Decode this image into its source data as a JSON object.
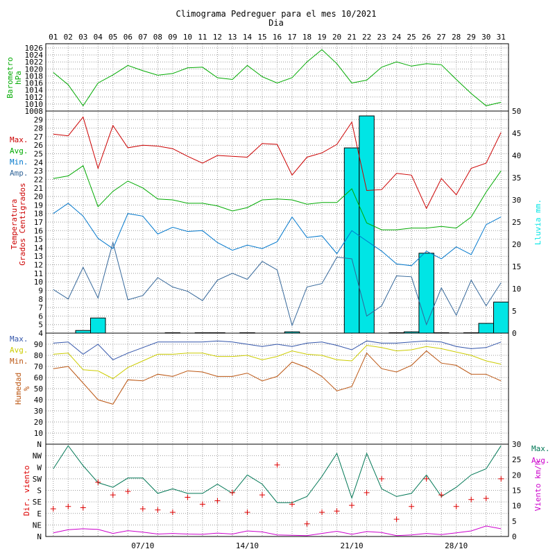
{
  "title": "Climograma Pedreguer para el mes 10/2021",
  "subtitle": "Dia",
  "days": [
    "01",
    "02",
    "03",
    "04",
    "05",
    "06",
    "07",
    "08",
    "09",
    "10",
    "11",
    "12",
    "13",
    "14",
    "15",
    "16",
    "17",
    "18",
    "19",
    "20",
    "21",
    "22",
    "23",
    "24",
    "25",
    "26",
    "27",
    "28",
    "29",
    "30",
    "31"
  ],
  "date_ticks": [
    {
      "day": 7,
      "label": "07/10"
    },
    {
      "day": 14,
      "label": "14/10"
    },
    {
      "day": 21,
      "label": "21/10"
    },
    {
      "day": 28,
      "label": "28/10"
    }
  ],
  "colors": {
    "pressure": "#00aa00",
    "tmax": "#cc0000",
    "tavg": "#00aa00",
    "tmin": "#0077cc",
    "tamp": "#336699",
    "rain": "#00e5e5",
    "hmax": "#3355aa",
    "havg": "#cccc00",
    "hmin": "#bb5511",
    "wdir": "#dd0000",
    "wmax": "#007755",
    "wavg": "#cc00cc",
    "grid": "#999999"
  },
  "chart_data": [
    {
      "type": "line",
      "panel": "pressure",
      "ylabel": [
        "Barometro",
        "hPa"
      ],
      "ylim": [
        1008,
        1026
      ],
      "yticks": [
        1008,
        1010,
        1012,
        1014,
        1016,
        1018,
        1020,
        1022,
        1024,
        1026
      ],
      "x": [
        1,
        2,
        3,
        4,
        5,
        6,
        7,
        8,
        9,
        10,
        11,
        12,
        13,
        14,
        15,
        16,
        17,
        18,
        19,
        20,
        21,
        22,
        23,
        24,
        25,
        26,
        27,
        28,
        29,
        30,
        31
      ],
      "series": [
        {
          "key": "pressure",
          "values": [
            1019,
            1015.5,
            1009.5,
            1016,
            1018.3,
            1021,
            1019.5,
            1018.2,
            1018.7,
            1020.3,
            1020.5,
            1017.5,
            1017,
            1021,
            1017.8,
            1016,
            1017.5,
            1022,
            1025.5,
            1021.5,
            1016,
            1016.8,
            1020.5,
            1022,
            1020.8,
            1021.5,
            1021.2,
            1017,
            1013,
            1009.5,
            1010.5
          ]
        }
      ]
    },
    {
      "type": "line+bar",
      "panel": "temperature_rain",
      "ylabel": [
        "Temperatura",
        "Grados Centigrados"
      ],
      "ylim": [
        4,
        30
      ],
      "yticks": [
        4,
        5,
        6,
        7,
        8,
        9,
        10,
        11,
        12,
        13,
        14,
        15,
        16,
        17,
        18,
        19,
        20,
        21,
        22,
        23,
        24,
        25,
        26,
        27,
        28,
        29
      ],
      "y2label": "Lluvia mm.",
      "y2lim": [
        0,
        50
      ],
      "y2ticks": [
        0,
        5,
        10,
        15,
        20,
        25,
        30,
        35,
        40,
        45,
        50
      ],
      "legend": [
        "Max.",
        "Avg.",
        "Min.",
        "Amp."
      ],
      "x": [
        1,
        2,
        3,
        4,
        5,
        6,
        7,
        8,
        9,
        10,
        11,
        12,
        13,
        14,
        15,
        16,
        17,
        18,
        19,
        20,
        21,
        22,
        23,
        24,
        25,
        26,
        27,
        28,
        29,
        30,
        31
      ],
      "series": [
        {
          "name": "Max.",
          "key": "tmax",
          "values": [
            27.3,
            27.1,
            29.3,
            23.3,
            28.3,
            25.7,
            26,
            25.9,
            25.6,
            24.7,
            23.9,
            24.8,
            24.7,
            24.6,
            26.2,
            26.1,
            22.5,
            24.6,
            25.1,
            26.1,
            28.7,
            20.7,
            20.8,
            22.7,
            22.5,
            18.6,
            22.1,
            20.2,
            23.3,
            23.9,
            27.5
          ]
        },
        {
          "name": "Avg.",
          "key": "tavg",
          "values": [
            22.1,
            22.4,
            23.6,
            18.8,
            20.6,
            21.8,
            21,
            19.7,
            19.6,
            19.2,
            19.2,
            18.9,
            18.3,
            18.7,
            19.6,
            19.7,
            19.6,
            19.1,
            19.3,
            19.3,
            20.9,
            16.9,
            16.1,
            16.1,
            16.3,
            16.3,
            16.5,
            16.3,
            17.6,
            20.5,
            23
          ]
        },
        {
          "name": "Min.",
          "key": "tmin",
          "values": [
            18,
            19.2,
            17.7,
            15.1,
            13.9,
            18,
            17.7,
            15.6,
            16.4,
            15.9,
            16,
            14.6,
            13.7,
            14.3,
            13.9,
            14.7,
            17.6,
            15.2,
            15.4,
            13.3,
            16,
            14.8,
            13.6,
            12.1,
            11.9,
            13.6,
            12.7,
            14.1,
            13.2,
            16.7,
            17.6
          ]
        },
        {
          "name": "Amp.",
          "key": "tamp",
          "values": [
            9.1,
            8,
            11.7,
            8.1,
            14.6,
            7.9,
            8.4,
            10.5,
            9.4,
            8.9,
            7.8,
            10.2,
            11,
            10.3,
            12.4,
            11.4,
            4.9,
            9.4,
            9.8,
            12.9,
            12.7,
            6,
            7.2,
            10.7,
            10.6,
            5,
            9.3,
            6.1,
            10.2,
            7.2,
            9.9
          ]
        }
      ],
      "bars": {
        "name": "Lluvia mm.",
        "key": "rain",
        "values": [
          0,
          0,
          0.6,
          3.4,
          0,
          0,
          0,
          0,
          0.1,
          0,
          0.1,
          0.1,
          0,
          0.1,
          0,
          0,
          0.3,
          0,
          0,
          0,
          41.7,
          48.9,
          0,
          0.1,
          0.3,
          18,
          0.1,
          0,
          0.1,
          2.2,
          7
        ]
      }
    },
    {
      "type": "line",
      "panel": "humidity",
      "ylabel": [
        "Humedad",
        "%"
      ],
      "ylim": [
        0,
        100
      ],
      "yticks": [
        10,
        20,
        30,
        40,
        50,
        60,
        70,
        80,
        90
      ],
      "legend": [
        "Max.",
        "Avg.",
        "Min."
      ],
      "x": [
        1,
        2,
        3,
        4,
        5,
        6,
        7,
        8,
        9,
        10,
        11,
        12,
        13,
        14,
        15,
        16,
        17,
        18,
        19,
        20,
        21,
        22,
        23,
        24,
        25,
        26,
        27,
        28,
        29,
        30,
        31
      ],
      "series": [
        {
          "name": "Max.",
          "key": "hmax",
          "values": [
            91,
            92,
            81,
            90,
            76,
            82,
            87,
            92,
            92,
            92,
            92,
            93,
            92,
            90,
            88,
            90,
            88,
            91,
            92,
            89,
            85,
            93,
            91,
            91,
            92,
            93,
            92,
            88,
            86,
            87,
            92
          ]
        },
        {
          "name": "Avg.",
          "key": "havg",
          "values": [
            81,
            82,
            67,
            66,
            59,
            69,
            75,
            81,
            81,
            82,
            82,
            79,
            79,
            80,
            76,
            79,
            84,
            81,
            80,
            76,
            75,
            89,
            87,
            84,
            85,
            88,
            86,
            83,
            80,
            75,
            72
          ]
        },
        {
          "name": "Min.",
          "key": "hmin",
          "values": [
            68,
            70,
            55,
            40,
            36,
            58,
            57,
            63,
            61,
            66,
            65,
            61,
            61,
            64,
            57,
            61,
            74,
            69,
            61,
            48,
            52,
            82,
            68,
            65,
            71,
            84,
            73,
            71,
            63,
            63,
            57
          ]
        }
      ]
    },
    {
      "type": "scatter+line",
      "panel": "wind",
      "ylabel": "Dir. viento",
      "ylim": [
        0,
        8
      ],
      "yticks": [
        "N",
        "NE",
        "E",
        "SE",
        "S",
        "SW",
        "W",
        "NW",
        "N"
      ],
      "y2label": "Viento km/h",
      "y2lim": [
        0,
        30
      ],
      "y2ticks": [
        0,
        5,
        10,
        15,
        20,
        25,
        30
      ],
      "legend": [
        "Max.",
        "Avg."
      ],
      "x": [
        1,
        2,
        3,
        4,
        5,
        6,
        7,
        8,
        9,
        10,
        11,
        12,
        13,
        14,
        15,
        16,
        17,
        18,
        19,
        20,
        21,
        22,
        23,
        24,
        25,
        26,
        27,
        28,
        29,
        30,
        31
      ],
      "direction": [
        2.4,
        2.6,
        2.5,
        4.7,
        3.6,
        3.9,
        2.4,
        2.3,
        2.1,
        3.4,
        2.8,
        3.1,
        3.8,
        2.1,
        3.6,
        6.2,
        2.8,
        1.1,
        2.1,
        2.2,
        2.7,
        3.8,
        5.0,
        1.5,
        2.6,
        5.0,
        3.6,
        2.6,
        3.2,
        3.3,
        5.0
      ],
      "series": [
        {
          "name": "Max.",
          "key": "wmax",
          "values": [
            22,
            29.5,
            23,
            17.5,
            16,
            19,
            19,
            14,
            15.5,
            14,
            14,
            17,
            14,
            20,
            17,
            11,
            11,
            13,
            19.5,
            27,
            12.5,
            27,
            15.5,
            13,
            14,
            20,
            13,
            16,
            20,
            22,
            29.5
          ]
        },
        {
          "name": "Avg.",
          "key": "wavg",
          "values": [
            1.2,
            2.2,
            2.5,
            2.3,
            1,
            1.9,
            1.4,
            0.8,
            1,
            0.8,
            0.7,
            1.1,
            0.8,
            1.8,
            1.5,
            0.5,
            0.4,
            0.3,
            1,
            1.7,
            0.7,
            1.6,
            1.3,
            0.3,
            0.5,
            1,
            0.6,
            1.2,
            1.8,
            3.4,
            2.5
          ]
        }
      ]
    }
  ]
}
